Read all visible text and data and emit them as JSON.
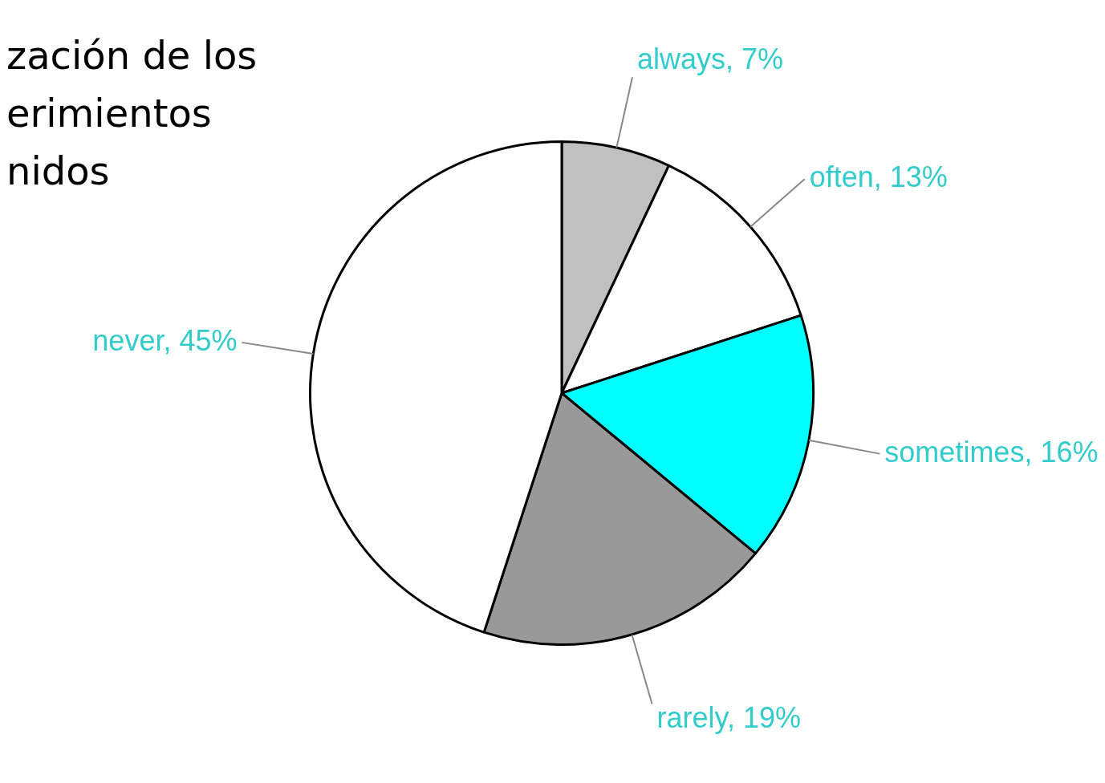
{
  "chart_data": {
    "type": "pie",
    "title": "zación de los\nerimientos\nnidos",
    "categories": [
      "always, 7%",
      "often, 13%",
      "sometimes, 16%",
      "rarely, 19%",
      "never, 45%"
    ],
    "values": [
      7,
      13,
      16,
      19,
      45
    ],
    "colors": [
      "#c0c0c0",
      "#ffffff",
      "#00ffff",
      "#999999",
      "#ffffff"
    ],
    "legend": false
  }
}
